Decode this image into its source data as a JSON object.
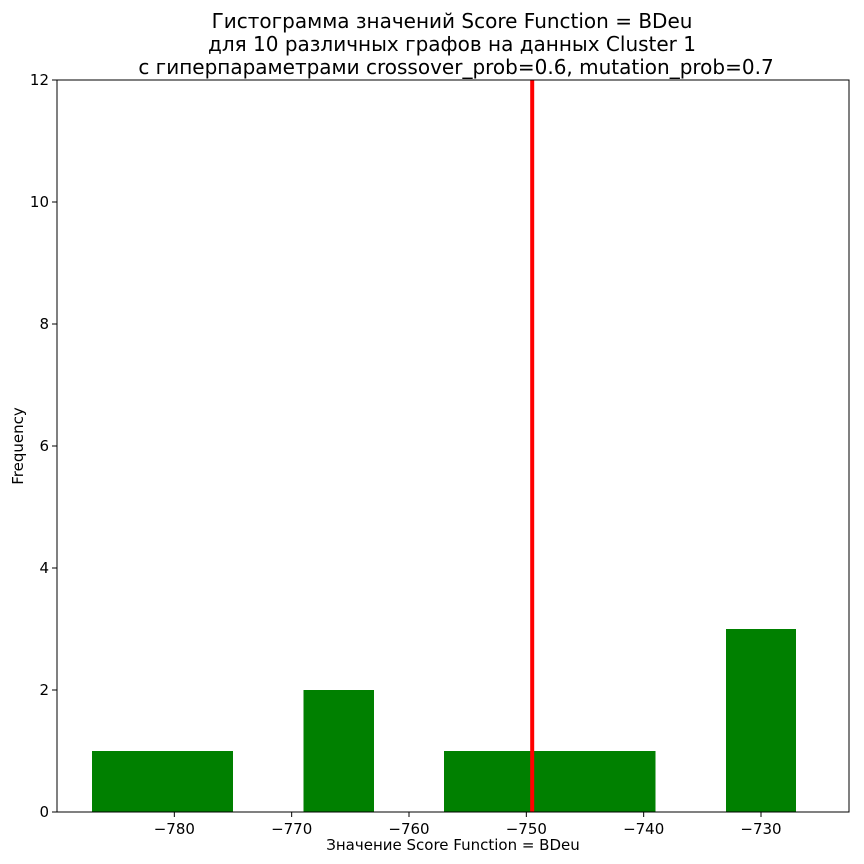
{
  "chart_data": {
    "type": "bar",
    "title_lines": [
      "Гистограмма значений Score Function = BDeu",
      "для 10 различных графов на данных Cluster 1",
      "с гиперпараметрами crossover_prob=0.6, mutation_prob=0.7"
    ],
    "xlabel": "Значение Score Function = BDeu",
    "ylabel": "Frequency",
    "xlim": [
      -790.0,
      -722.5
    ],
    "ylim": [
      0,
      12
    ],
    "x_ticks": [
      -780,
      -770,
      -760,
      -750,
      -740,
      -730
    ],
    "y_ticks": [
      0,
      2,
      4,
      6,
      8,
      10,
      12
    ],
    "bins": [
      {
        "x0": -787.0,
        "x1": -781.0,
        "value": 1
      },
      {
        "x0": -781.0,
        "x1": -775.0,
        "value": 1
      },
      {
        "x0": -775.0,
        "x1": -769.0,
        "value": 0
      },
      {
        "x0": -769.0,
        "x1": -763.0,
        "value": 2
      },
      {
        "x0": -763.0,
        "x1": -757.0,
        "value": 0
      },
      {
        "x0": -757.0,
        "x1": -751.0,
        "value": 1
      },
      {
        "x0": -751.0,
        "x1": -745.0,
        "value": 1
      },
      {
        "x0": -745.0,
        "x1": -739.0,
        "value": 1
      },
      {
        "x0": -739.0,
        "x1": -733.0,
        "value": 0
      },
      {
        "x0": -733.0,
        "x1": -727.0,
        "value": 3
      }
    ],
    "vline": -749.5,
    "bar_color": "#008000",
    "vline_color": "#ff0000",
    "grid": false
  }
}
